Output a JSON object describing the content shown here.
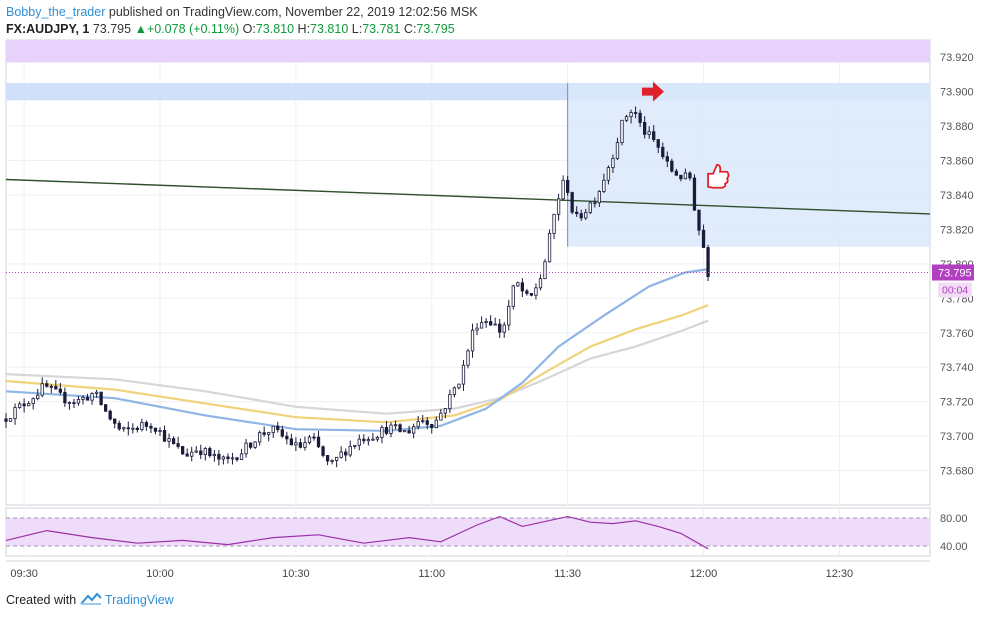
{
  "header": {
    "author": "Bobby_the_trader",
    "published": "published on TradingView.com, November 22, 2019 12:02:56 MSK",
    "symbol": "FX:AUDJPY, 1",
    "last": "73.795",
    "change": "+0.078 (+0.11%)",
    "o_label": "O:",
    "o_value": "73.810",
    "h_label": "H:",
    "h_value": "73.810",
    "l_label": "L:",
    "l_value": "73.781",
    "c_label": "C:",
    "c_value": "73.795"
  },
  "footer": {
    "created_with": "Created with",
    "brand": "TradingView"
  },
  "price_tag": {
    "value": "73.795",
    "countdown": "00:04",
    "color": "#b23fc2"
  },
  "colors": {
    "up": "#ffffff",
    "down": "#1b1b3a",
    "wick": "#1b1b3a",
    "zone_top": "#e7d2fb",
    "zone_blue": "#cfe0f8",
    "zone_box": "#dbe7fa",
    "trendline": "#2f4f2f",
    "ma_fast": "#8fb4e6",
    "ma_mid": "#f0d27a",
    "ma_slow": "#d6d6d6",
    "rsi": "#9c2fa6",
    "rsi_band": "#efdcfb",
    "arrow": "#e0202a"
  },
  "chart_data": [
    {
      "type": "candlestick",
      "title": "",
      "xlabel": "",
      "ylabel": "",
      "ylim": [
        73.66,
        73.93
      ],
      "y_ticks": [
        "73.920",
        "73.900",
        "73.880",
        "73.860",
        "73.840",
        "73.820",
        "73.800",
        "73.780",
        "73.760",
        "73.740",
        "73.720",
        "73.700",
        "73.680"
      ],
      "x_ticks": [
        {
          "t": 570,
          "label": "09:30"
        },
        {
          "t": 600,
          "label": "10:00"
        },
        {
          "t": 630,
          "label": "10:30"
        },
        {
          "t": 660,
          "label": "11:00"
        },
        {
          "t": 690,
          "label": "11:30"
        },
        {
          "t": 720,
          "label": "12:00"
        },
        {
          "t": 750,
          "label": "12:30"
        }
      ],
      "x_range": [
        566,
        770
      ],
      "grid": true,
      "anchors": [
        {
          "t": 566.0,
          "p": 73.71
        },
        {
          "t": 569.0,
          "p": 73.716
        },
        {
          "t": 572.0,
          "p": 73.722
        },
        {
          "t": 575.0,
          "p": 73.729
        },
        {
          "t": 579.0,
          "p": 73.722
        },
        {
          "t": 582.0,
          "p": 73.72
        },
        {
          "t": 586.0,
          "p": 73.725
        },
        {
          "t": 589.0,
          "p": 73.712
        },
        {
          "t": 592.0,
          "p": 73.702
        },
        {
          "t": 596.0,
          "p": 73.706
        },
        {
          "t": 599.0,
          "p": 73.707
        },
        {
          "t": 602.0,
          "p": 73.698
        },
        {
          "t": 606.0,
          "p": 73.689
        },
        {
          "t": 609.0,
          "p": 73.693
        },
        {
          "t": 612.0,
          "p": 73.688
        },
        {
          "t": 615.0,
          "p": 73.685
        },
        {
          "t": 619.0,
          "p": 73.692
        },
        {
          "t": 622.0,
          "p": 73.7
        },
        {
          "t": 625.0,
          "p": 73.704
        },
        {
          "t": 628.0,
          "p": 73.699
        },
        {
          "t": 631.0,
          "p": 73.693
        },
        {
          "t": 634.0,
          "p": 73.699
        },
        {
          "t": 638.0,
          "p": 73.682
        },
        {
          "t": 641.0,
          "p": 73.691
        },
        {
          "t": 645.0,
          "p": 73.699
        },
        {
          "t": 648.0,
          "p": 73.701
        },
        {
          "t": 651.0,
          "p": 73.705
        },
        {
          "t": 655.0,
          "p": 73.702
        },
        {
          "t": 658.0,
          "p": 73.71
        },
        {
          "t": 661.0,
          "p": 73.707
        },
        {
          "t": 664.0,
          "p": 73.72
        },
        {
          "t": 667.0,
          "p": 73.735
        },
        {
          "t": 670.0,
          "p": 73.765
        },
        {
          "t": 673.0,
          "p": 73.768
        },
        {
          "t": 676.0,
          "p": 73.76
        },
        {
          "t": 679.0,
          "p": 73.79
        },
        {
          "t": 682.0,
          "p": 73.778
        },
        {
          "t": 685.0,
          "p": 73.795
        },
        {
          "t": 688.0,
          "p": 73.835
        },
        {
          "t": 690.0,
          "p": 73.85
        },
        {
          "t": 692.0,
          "p": 73.825
        },
        {
          "t": 694.0,
          "p": 73.83
        },
        {
          "t": 697.0,
          "p": 73.84
        },
        {
          "t": 700.0,
          "p": 73.86
        },
        {
          "t": 703.0,
          "p": 73.885
        },
        {
          "t": 705.0,
          "p": 73.89
        },
        {
          "t": 707.0,
          "p": 73.878
        },
        {
          "t": 710.0,
          "p": 73.87
        },
        {
          "t": 713.0,
          "p": 73.855
        },
        {
          "t": 716.0,
          "p": 73.85
        },
        {
          "t": 717.5,
          "p": 73.85
        },
        {
          "t": 719.0,
          "p": 73.825
        },
        {
          "t": 720.5,
          "p": 73.81
        },
        {
          "t": 721.0,
          "p": 73.795
        }
      ],
      "highlights": [
        {
          "kind": "zone",
          "ylim": [
            73.917,
            73.93
          ],
          "color": "#e7d2fb"
        },
        {
          "kind": "zone",
          "ylim": [
            73.895,
            73.905
          ],
          "color": "#cfe0f8"
        },
        {
          "kind": "box",
          "t": [
            690,
            770
          ],
          "ylim": [
            73.81,
            73.905
          ],
          "color": "#dbe7fa"
        }
      ],
      "trendline": {
        "t1": 566,
        "p1": 73.849,
        "t2": 770,
        "p2": 73.829
      },
      "moving_averages": [
        {
          "name": "",
          "color": "#d6d6d6",
          "points": [
            [
              566,
              73.736
            ],
            [
              590,
              73.733
            ],
            [
              610,
              73.726
            ],
            [
              630,
              73.717
            ],
            [
              650,
              73.713
            ],
            [
              665,
              73.716
            ],
            [
              675,
              73.722
            ],
            [
              685,
              73.733
            ],
            [
              695,
              73.745
            ],
            [
              705,
              73.752
            ],
            [
              715,
              73.761
            ],
            [
              721,
              73.767
            ]
          ]
        },
        {
          "name": "",
          "color": "#f0d27a",
          "points": [
            [
              566,
              73.732
            ],
            [
              590,
              73.727
            ],
            [
              610,
              73.719
            ],
            [
              630,
              73.711
            ],
            [
              650,
              73.708
            ],
            [
              665,
              73.712
            ],
            [
              675,
              73.721
            ],
            [
              685,
              73.737
            ],
            [
              695,
              73.752
            ],
            [
              705,
              73.762
            ],
            [
              715,
              73.77
            ],
            [
              721,
              73.776
            ]
          ]
        },
        {
          "name": "",
          "color": "#8fb4e6",
          "points": [
            [
              566,
              73.726
            ],
            [
              590,
              73.722
            ],
            [
              610,
              73.712
            ],
            [
              630,
              73.704
            ],
            [
              650,
              73.703
            ],
            [
              662,
              73.706
            ],
            [
              672,
              73.716
            ],
            [
              680,
              73.731
            ],
            [
              688,
              73.752
            ],
            [
              698,
              73.77
            ],
            [
              708,
              73.787
            ],
            [
              716,
              73.795
            ],
            [
              721,
              73.797
            ]
          ]
        }
      ],
      "markers": [
        {
          "kind": "arrow-right",
          "t": 709.5,
          "p": 73.9,
          "color": "#e0202a"
        },
        {
          "kind": "thumbs-up",
          "t": 721.0,
          "p": 73.85,
          "color": "#e0202a"
        }
      ]
    },
    {
      "type": "line",
      "title": "",
      "xlabel": "",
      "ylabel": "",
      "ylim": [
        30,
        90
      ],
      "y_ticks": [
        "80.00",
        "40.00"
      ],
      "band": [
        40,
        80
      ],
      "series": [
        {
          "name": "",
          "color": "#9c2fa6",
          "points": [
            [
              566,
              48
            ],
            [
              575,
              62
            ],
            [
              585,
              52
            ],
            [
              595,
              44
            ],
            [
              605,
              48
            ],
            [
              615,
              42
            ],
            [
              625,
              52
            ],
            [
              635,
              56
            ],
            [
              645,
              44
            ],
            [
              655,
              52
            ],
            [
              662,
              46
            ],
            [
              670,
              70
            ],
            [
              675,
              82
            ],
            [
              680,
              68
            ],
            [
              690,
              82
            ],
            [
              695,
              74
            ],
            [
              700,
              72
            ],
            [
              705,
              76
            ],
            [
              710,
              68
            ],
            [
              715,
              58
            ],
            [
              721,
              36
            ]
          ]
        }
      ]
    }
  ]
}
